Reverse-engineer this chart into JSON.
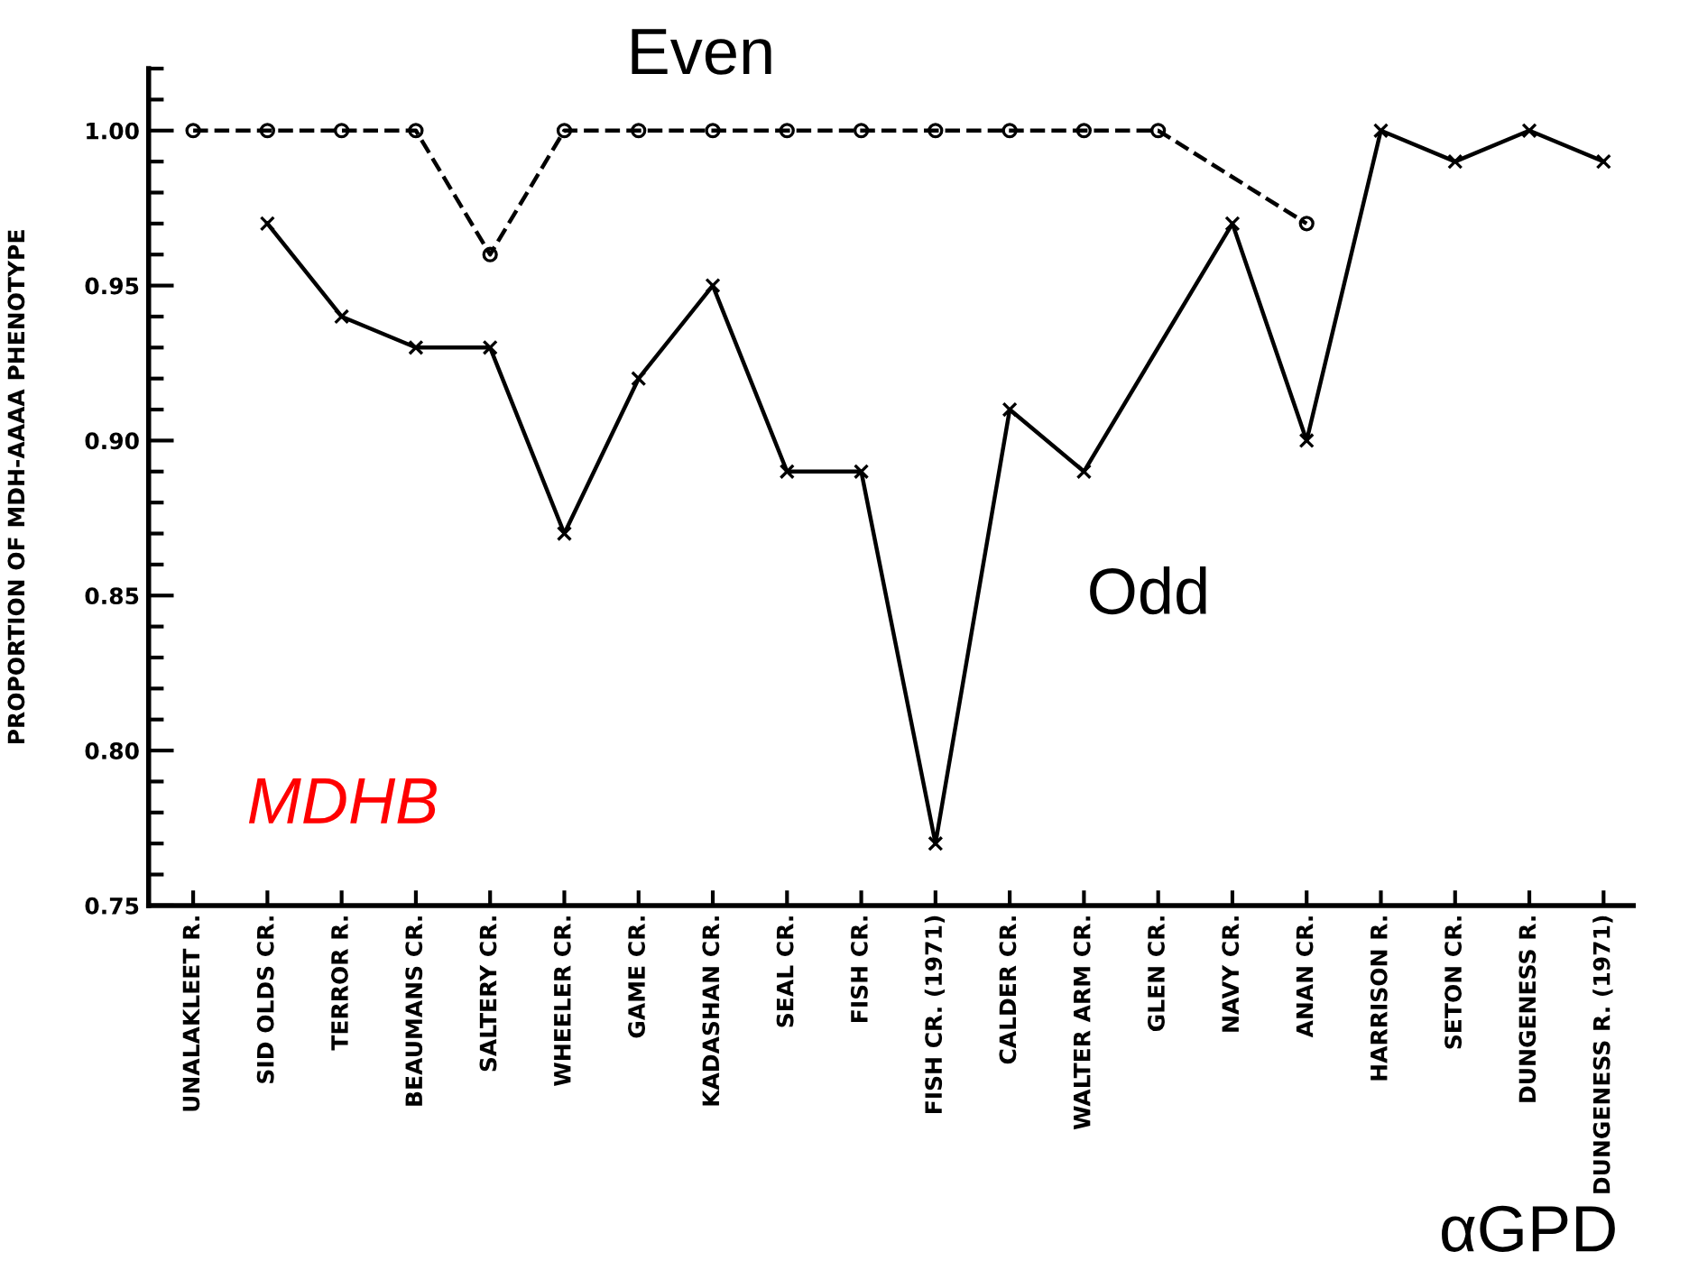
{
  "chart_data": {
    "type": "line",
    "ylabel": "PROPORTION OF MDH-AAAA PHENOTYPE",
    "categories": [
      "UNALAKLEET R.",
      "SID OLDS CR.",
      "TERROR R.",
      "BEAUMANS CR.",
      "SALTERY CR.",
      "WHEELER CR.",
      "GAME CR.",
      "KADASHAN CR.",
      "SEAL CR.",
      "FISH CR.",
      "FISH CR. (1971)",
      "CALDER CR.",
      "WALTER ARM CR.",
      "GLEN CR.",
      "NAVY CR.",
      "ANAN CR.",
      "HARRISON R.",
      "SETON CR.",
      "DUNGENESS R.",
      "DUNGENESS R. (1971)"
    ],
    "series": [
      {
        "name": "Even",
        "color": "#000000",
        "marker": "circle",
        "line_style": "dashed",
        "values": [
          1.0,
          1.0,
          1.0,
          1.0,
          0.96,
          1.0,
          1.0,
          1.0,
          1.0,
          1.0,
          1.0,
          1.0,
          1.0,
          1.0,
          null,
          0.97,
          null,
          null,
          null,
          null
        ]
      },
      {
        "name": "Odd",
        "color": "#000000",
        "marker": "cross",
        "line_style": "solid",
        "values": [
          null,
          0.97,
          0.94,
          0.93,
          0.93,
          0.87,
          0.92,
          0.95,
          0.89,
          0.89,
          0.77,
          0.91,
          0.89,
          null,
          0.97,
          0.9,
          1.0,
          0.99,
          1.0,
          0.99
        ]
      }
    ],
    "ylim": [
      0.75,
      1.02
    ],
    "yticks": [
      {
        "value": 0.75,
        "label": "0.75"
      },
      {
        "value": 0.8,
        "label": "0.80"
      },
      {
        "value": 0.85,
        "label": "0.85"
      },
      {
        "value": 0.9,
        "label": "0.90"
      },
      {
        "value": 0.95,
        "label": "0.95"
      },
      {
        "value": 1.0,
        "label": "1.00"
      }
    ],
    "annotations": [
      "MDHB",
      "αGPD"
    ],
    "grid": false,
    "legend": false
  }
}
